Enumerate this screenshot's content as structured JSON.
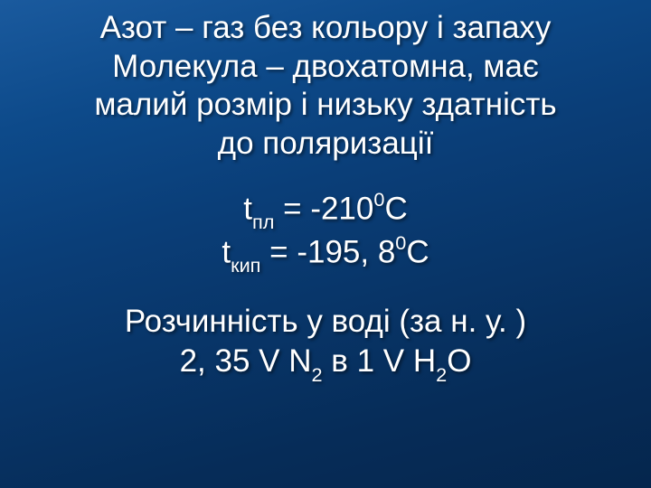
{
  "slide": {
    "background_gradient": [
      "#1a5a9e",
      "#0d4a8a",
      "#0a3e78",
      "#083568",
      "#062c58",
      "#05264d"
    ],
    "text_color": "#ffffff",
    "font_family": "Verdana",
    "title_fontsize": 35,
    "body_fontsize": 35,
    "title": {
      "line1": "Азот – газ без кольору і запаху",
      "line2": "Молекула – двохатомна, має",
      "line3": "малий розмір і низьку здатність",
      "line4": "до поляризації"
    },
    "temps": {
      "t": "t",
      "sub_pl": "пл",
      "eq": " = ",
      "val_pl": "-210",
      "sup0": "0",
      "C": "С",
      "sub_kip": "кип",
      "val_kip": "-195, 8"
    },
    "sol": {
      "line1": "Розчинність у воді (за н. у. )",
      "l2_a": "2, 35 V N",
      "l2_sub2a": "2",
      "l2_b": " в 1 V H",
      "l2_sub2b": "2",
      "l2_c": "O"
    }
  }
}
